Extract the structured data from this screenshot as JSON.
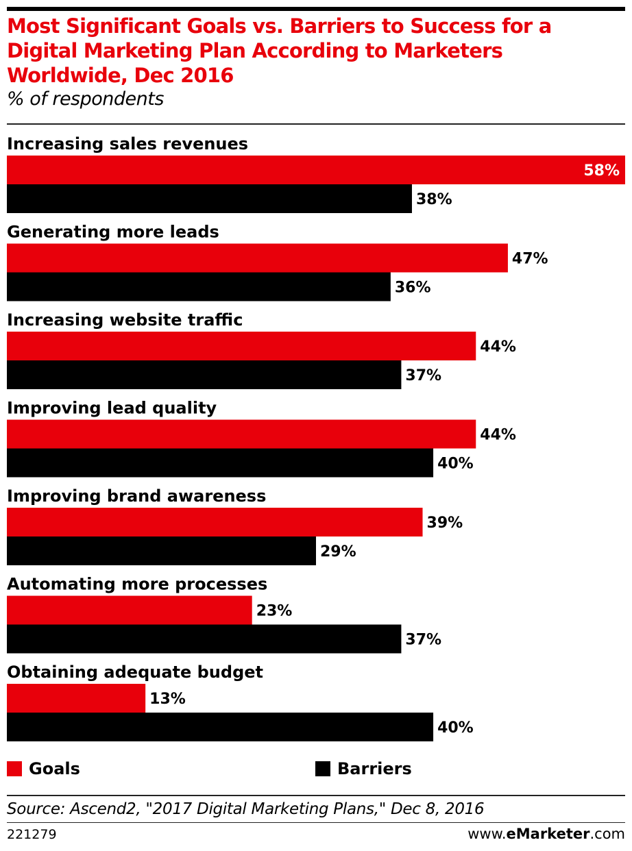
{
  "header": {
    "title": "Most Significant Goals vs. Barriers to Success for a Digital Marketing Plan According to Marketers Worldwide, Dec 2016",
    "subtitle": "% of respondents"
  },
  "colors": {
    "goals": "#e8000b",
    "barriers": "#000000",
    "title": "#e8000b"
  },
  "chart_data": {
    "type": "bar",
    "orientation": "horizontal",
    "value_suffix": "%",
    "categories": [
      "Increasing sales revenues",
      "Generating more leads",
      "Increasing website traffic",
      "Improving lead quality",
      "Improving brand awareness",
      "Automating more processes",
      "Obtaining adequate budget"
    ],
    "series": [
      {
        "name": "Goals",
        "values": [
          58,
          47,
          44,
          44,
          39,
          23,
          13
        ]
      },
      {
        "name": "Barriers",
        "values": [
          38,
          36,
          37,
          40,
          29,
          37,
          40
        ]
      }
    ],
    "xlim": [
      0,
      58
    ],
    "grid": false,
    "legend": "bottom"
  },
  "legend": {
    "goals_label": "Goals",
    "barriers_label": "Barriers"
  },
  "footer": {
    "source": "Source: Ascend2, \"2017 Digital Marketing Plans,\" Dec 8, 2016",
    "chart_id": "221279",
    "credit_prefix": "www.",
    "credit_e": "e",
    "credit_brand": "Marketer",
    "credit_suffix": ".com"
  }
}
